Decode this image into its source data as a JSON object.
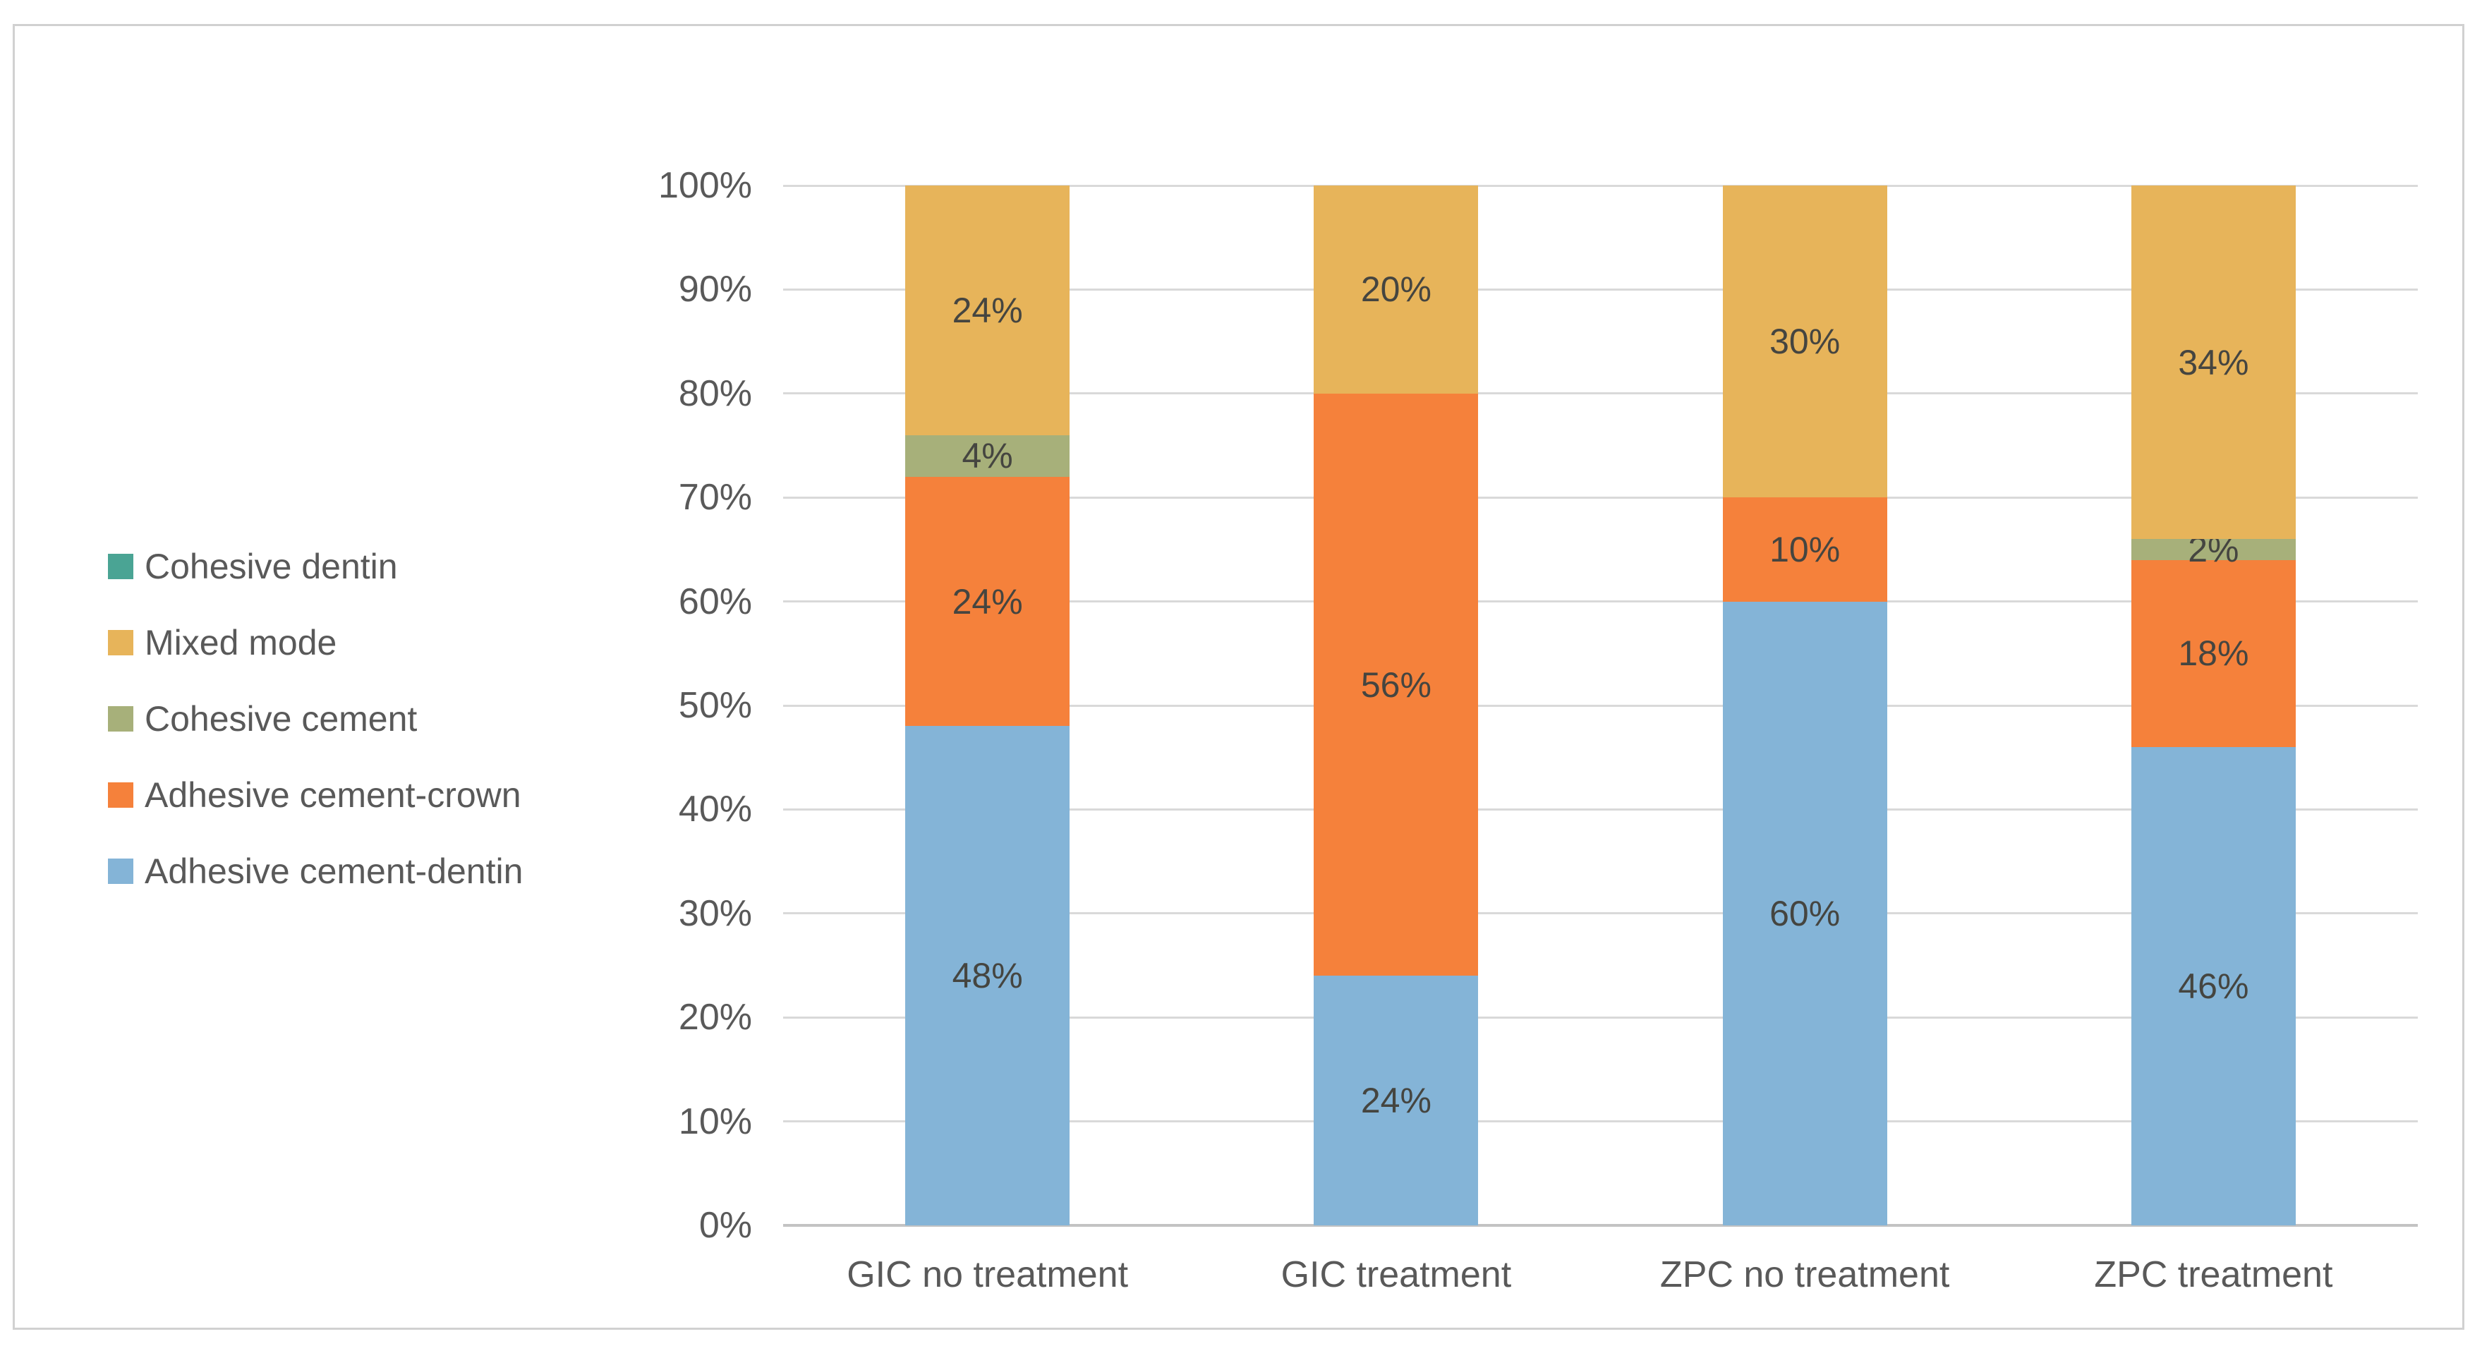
{
  "chart_data": {
    "type": "bar",
    "subtype": "stacked-100-percent",
    "title": "",
    "xlabel": "",
    "ylabel": "",
    "grid": true,
    "legend_position": "left",
    "categories": [
      "GIC no treatment",
      "GIC treatment",
      "ZPC no treatment",
      "ZPC treatment"
    ],
    "series": [
      {
        "name": "Adhesive cement-dentin",
        "color": "#84B4D7",
        "values": [
          48,
          24,
          60,
          46
        ],
        "labels": [
          "48%",
          "24%",
          "60%",
          "46%"
        ]
      },
      {
        "name": "Adhesive cement-crown",
        "color": "#F5813B",
        "values": [
          24,
          56,
          10,
          18
        ],
        "labels": [
          "24%",
          "56%",
          "10%",
          "18%"
        ]
      },
      {
        "name": "Cohesive cement",
        "color": "#A7B07A",
        "values": [
          4,
          0,
          0,
          2
        ],
        "labels": [
          "4%",
          "",
          "",
          "2%"
        ]
      },
      {
        "name": "Mixed mode",
        "color": "#E7B45A",
        "values": [
          24,
          20,
          30,
          34
        ],
        "labels": [
          "24%",
          "20%",
          "30%",
          "34%"
        ]
      },
      {
        "name": "Cohesive dentin",
        "color": "#4AA494",
        "values": [
          0,
          0,
          0,
          0
        ],
        "labels": [
          "",
          "",
          "",
          ""
        ]
      }
    ],
    "y_axis": {
      "min": 0,
      "max": 100,
      "step": 10,
      "tick_labels": [
        "0%",
        "10%",
        "20%",
        "30%",
        "40%",
        "50%",
        "60%",
        "70%",
        "80%",
        "90%",
        "100%"
      ]
    },
    "legend": {
      "entries": [
        "Cohesive dentin",
        "Mixed mode",
        "Cohesive cement",
        "Adhesive cement-crown",
        "Adhesive cement-dentin"
      ]
    }
  }
}
